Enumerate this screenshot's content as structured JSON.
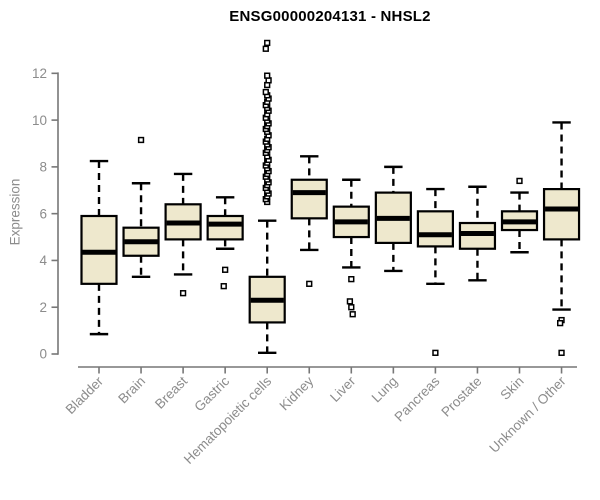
{
  "chart_data": {
    "type": "boxplot",
    "title": "ENSG00000204131 - NHSL2",
    "ylabel": "Expression",
    "xlabel": "",
    "y_ticks": [
      0,
      2,
      4,
      6,
      8,
      10,
      12
    ],
    "ylim": [
      0,
      13.5
    ],
    "grid": false,
    "legend": null,
    "categories": [
      "Bladder",
      "Brain",
      "Breast",
      "Gastric",
      "Hematopoietic cells",
      "Kidney",
      "Liver",
      "Lung",
      "Pancreas",
      "Prostate",
      "Skin",
      "Unknown / Other"
    ],
    "boxes": [
      {
        "category": "Bladder",
        "whisker_low": 0.85,
        "q1": 3.0,
        "median": 4.35,
        "q3": 5.9,
        "whisker_high": 8.25,
        "outliers": []
      },
      {
        "category": "Brain",
        "whisker_low": 3.3,
        "q1": 4.2,
        "median": 4.8,
        "q3": 5.4,
        "whisker_high": 7.3,
        "outliers": [
          9.15
        ]
      },
      {
        "category": "Breast",
        "whisker_low": 3.4,
        "q1": 4.9,
        "median": 5.6,
        "q3": 6.4,
        "whisker_high": 7.7,
        "outliers": [
          2.6
        ]
      },
      {
        "category": "Gastric",
        "whisker_low": 4.5,
        "q1": 4.9,
        "median": 5.55,
        "q3": 5.9,
        "whisker_high": 6.7,
        "outliers": [
          3.6,
          2.9
        ]
      },
      {
        "category": "Hematopoietic cells",
        "whisker_low": 0.05,
        "q1": 1.35,
        "median": 2.3,
        "q3": 3.3,
        "whisker_high": 5.7,
        "outliers": [
          6.5,
          6.62,
          6.74,
          6.86,
          6.98,
          7.1,
          7.22,
          7.34,
          7.46,
          7.58,
          7.7,
          7.82,
          7.94,
          8.06,
          8.18,
          8.3,
          8.45,
          8.6,
          8.72,
          8.84,
          8.96,
          9.08,
          9.2,
          9.35,
          9.5,
          9.62,
          9.74,
          9.86,
          9.98,
          10.1,
          10.25,
          10.4,
          10.52,
          10.64,
          10.78,
          10.92,
          11.06,
          11.2,
          11.5,
          11.7,
          11.9,
          13.05,
          13.3
        ]
      },
      {
        "category": "Kidney",
        "whisker_low": 4.45,
        "q1": 5.8,
        "median": 6.9,
        "q3": 7.45,
        "whisker_high": 8.45,
        "outliers": [
          3.0
        ]
      },
      {
        "category": "Liver",
        "whisker_low": 3.7,
        "q1": 5.0,
        "median": 5.65,
        "q3": 6.3,
        "whisker_high": 7.45,
        "outliers": [
          3.2,
          2.25,
          2.0,
          1.7
        ]
      },
      {
        "category": "Lung",
        "whisker_low": 3.55,
        "q1": 4.75,
        "median": 5.8,
        "q3": 6.9,
        "whisker_high": 8.0,
        "outliers": []
      },
      {
        "category": "Pancreas",
        "whisker_low": 3.0,
        "q1": 4.6,
        "median": 5.1,
        "q3": 6.1,
        "whisker_high": 7.05,
        "outliers": [
          0.05
        ]
      },
      {
        "category": "Prostate",
        "whisker_low": 3.15,
        "q1": 4.5,
        "median": 5.15,
        "q3": 5.6,
        "whisker_high": 7.15,
        "outliers": []
      },
      {
        "category": "Skin",
        "whisker_low": 4.35,
        "q1": 5.3,
        "median": 5.65,
        "q3": 6.1,
        "whisker_high": 6.9,
        "outliers": [
          7.4
        ]
      },
      {
        "category": "Unknown / Other",
        "whisker_low": 1.9,
        "q1": 4.9,
        "median": 6.2,
        "q3": 7.05,
        "whisker_high": 9.9,
        "outliers": [
          1.45,
          1.32,
          0.05
        ]
      }
    ],
    "colors": {
      "box_fill": "#EEE8CD",
      "box_stroke": "#000000",
      "median": "#000000",
      "whisker": "#000000",
      "outlier_stroke": "#000000",
      "outlier_fill": "#FFFFFF",
      "axis": "#777777",
      "tick_label": "#8C8C8C",
      "title": "#000000",
      "background": "#FFFFFF"
    }
  }
}
